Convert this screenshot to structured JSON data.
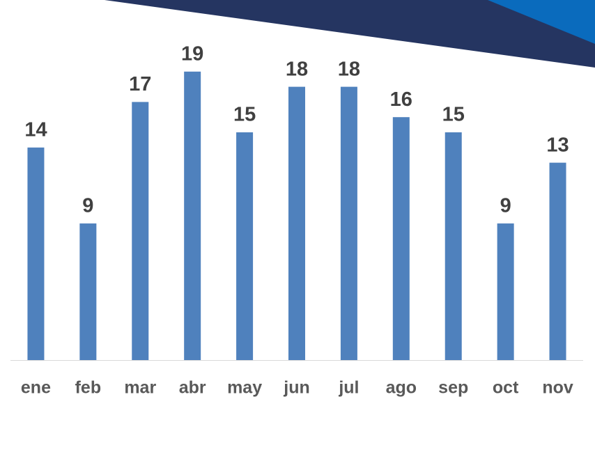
{
  "chart_data": {
    "type": "bar",
    "categories": [
      "ene",
      "feb",
      "mar",
      "abr",
      "may",
      "jun",
      "jul",
      "ago",
      "sep",
      "oct",
      "nov"
    ],
    "values": [
      14,
      9,
      17,
      19,
      15,
      18,
      18,
      16,
      15,
      9,
      13
    ],
    "color": "#4f81bd"
  }
}
